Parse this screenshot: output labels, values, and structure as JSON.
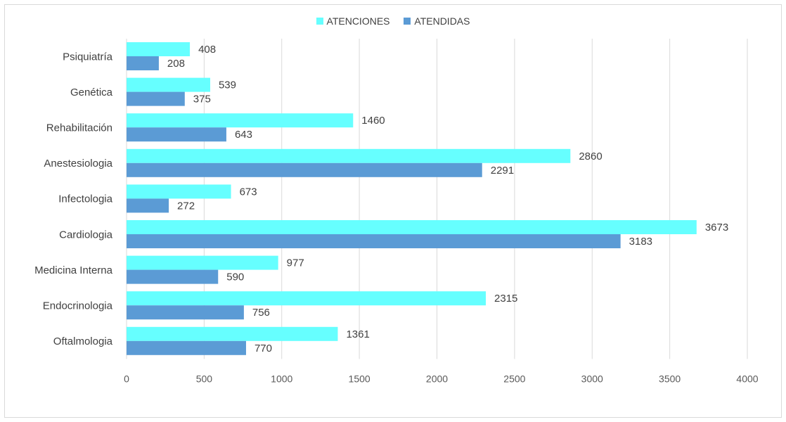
{
  "chart_data": {
    "type": "bar",
    "orientation": "horizontal",
    "title": "",
    "xlabel": "",
    "ylabel": "",
    "categories": [
      "Psiquiatría",
      "Genética",
      "Rehabilitación",
      "Anestesiologia",
      "Infectologia",
      "Cardiologia",
      "Medicina Interna",
      "Endocrinologia",
      "Oftalmologia"
    ],
    "series": [
      {
        "name": "ATENCIONES",
        "color": "#66FFFF",
        "values": [
          408,
          539,
          1460,
          2860,
          673,
          3673,
          977,
          2315,
          1361
        ]
      },
      {
        "name": "ATENDIDAS",
        "color": "#5B9BD5",
        "values": [
          208,
          375,
          643,
          2291,
          272,
          3183,
          590,
          756,
          770
        ]
      }
    ],
    "xlim": [
      0,
      4000
    ],
    "xticks": [
      0,
      500,
      1000,
      1500,
      2000,
      2500,
      3000,
      3500,
      4000
    ],
    "grid": true,
    "legend_position": "top"
  }
}
